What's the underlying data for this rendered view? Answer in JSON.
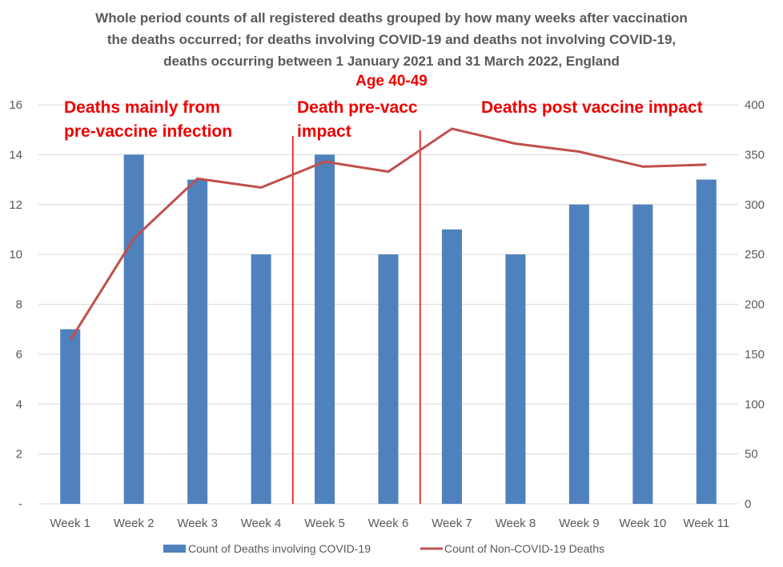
{
  "chart_data": {
    "type": "bar",
    "title_lines": [
      "Whole period counts of all registered deaths grouped by how many weeks after vaccination",
      "the deaths occurred; for deaths involving COVID-19 and deaths not involving COVID-19,",
      "deaths occurring between 1 January 2021 and 31 March 2022, England"
    ],
    "subtitle": "Age 40-49",
    "categories": [
      "Week 1",
      "Week 2",
      "Week 3",
      "Week 4",
      "Week 5",
      "Week 6",
      "Week 7",
      "Week 8",
      "Week 9",
      "Week 10",
      "Week 11"
    ],
    "series": [
      {
        "name": "Count of Deaths involving COVID-19",
        "type": "bar",
        "axis": "left",
        "color": "#4f81bd",
        "values": [
          7,
          14,
          13,
          10,
          14,
          10,
          11,
          10,
          12,
          12,
          13
        ]
      },
      {
        "name": "Count of Non-COVID-19 Deaths",
        "type": "line",
        "axis": "right",
        "color": "#c0504d",
        "values": [
          164,
          266,
          326,
          317,
          343,
          333,
          376,
          361,
          353,
          338,
          340
        ]
      }
    ],
    "left_axis": {
      "ylim": [
        0,
        16
      ],
      "ticks": [
        0,
        2,
        4,
        6,
        8,
        10,
        12,
        14,
        16
      ],
      "tick_labels": [
        "-",
        "2",
        "4",
        "6",
        "8",
        "10",
        "12",
        "14",
        "16"
      ]
    },
    "right_axis": {
      "ylim": [
        0,
        400
      ],
      "ticks": [
        0,
        50,
        100,
        150,
        200,
        250,
        300,
        350,
        400
      ],
      "tick_labels": [
        "0",
        "50",
        "100",
        "150",
        "200",
        "250",
        "300",
        "350",
        "400"
      ]
    },
    "grid": true,
    "legend_position": "bottom",
    "annotations": [
      {
        "lines": [
          "Deaths mainly from",
          "pre-vaccine infection"
        ],
        "color": "#ee0000"
      },
      {
        "lines": [
          "Death pre-vacc",
          "impact"
        ],
        "color": "#ee0000"
      },
      {
        "lines": [
          "Deaths post vaccine impact"
        ],
        "color": "#ee0000"
      }
    ],
    "divider_lines": [
      {
        "between": [
          "Week 4",
          "Week 5"
        ],
        "color": "#ee0000"
      },
      {
        "between": [
          "Week 6",
          "Week 7"
        ],
        "color": "#ee0000"
      }
    ]
  }
}
